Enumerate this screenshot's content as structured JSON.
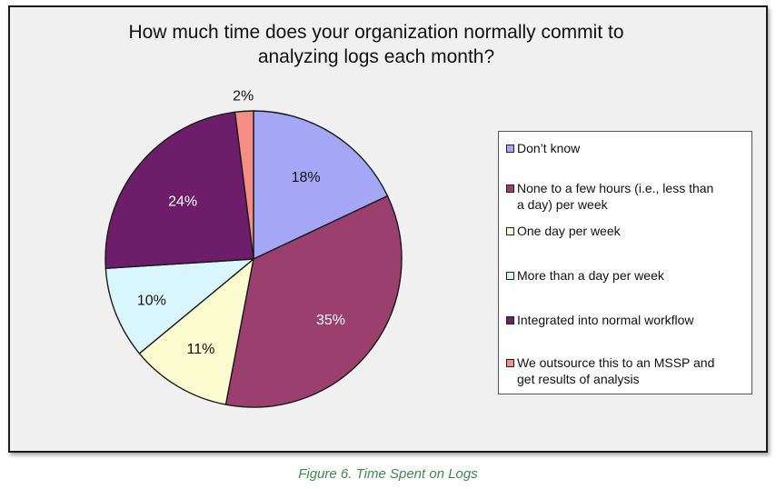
{
  "chart_data": {
    "type": "pie",
    "title": "How much time does your organization normally commit to analyzing logs each month?",
    "title_lines": [
      "How much time does your organization normally commit to",
      "analyzing logs each month?"
    ],
    "categories": [
      "Don’t know",
      "None to a few hours (i.e., less than a day) per week",
      "One day per week",
      "More than a day per week",
      "Integrated into normal workflow",
      "We outsource this to an MSSP and get results of analysis"
    ],
    "values": [
      18,
      35,
      11,
      10,
      24,
      2
    ],
    "value_labels": [
      "18%",
      "35%",
      "11%",
      "10%",
      "24%",
      "2%"
    ],
    "colors": [
      "#a6a6f7",
      "#9a3f6e",
      "#fbfbd0",
      "#d8f6fb",
      "#6e1d6b",
      "#f58f85"
    ],
    "label_colors": [
      "#111111",
      "#ffffff",
      "#111111",
      "#111111",
      "#ffffff",
      "#111111"
    ],
    "legend_lines": [
      [
        "Don’t know"
      ],
      [
        "None to a few hours (i.e., less than",
        "a day) per week"
      ],
      [
        "One day per week"
      ],
      [
        "More than a day per week"
      ],
      [
        "Integrated into normal workflow"
      ],
      [
        "We outsource this to an MSSP and",
        "get results of analysis"
      ]
    ],
    "legend_placement": "right"
  },
  "caption": "Figure 6. Time Spent on Logs"
}
